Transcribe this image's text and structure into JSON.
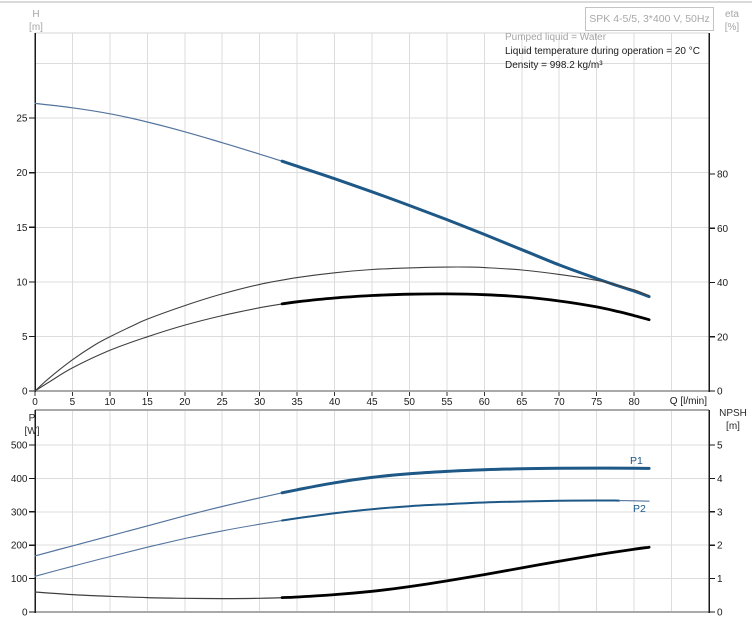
{
  "header": {
    "title_box": "SPK 4-5/5, 3*400 V, 50Hz",
    "info_lines": [
      {
        "text": "Pumped liquid = Water",
        "muted": true
      },
      {
        "text": "Liquid temperature during operation = 20 °C",
        "muted": false
      },
      {
        "text": "Density = 998.2 kg/m³",
        "muted": false
      }
    ]
  },
  "axes_labels": {
    "h_line1": "H",
    "h_line2": "[m]",
    "eta_line1": "eta",
    "eta_line2": "[%]",
    "p_line1": "P",
    "p_line2": "[W]",
    "npsh_line1": "NPSH",
    "npsh_line2": "[m]",
    "q": "Q [l/min]"
  },
  "colors": {
    "curve_blue": "#1d5887",
    "curve_blue_thin": "#54749e",
    "curve_black": "#000000",
    "curve_black_thin": "#3f3f3f",
    "grid": "#dcdcdc",
    "frame_gray": "#a9a9a9",
    "axis_black": "#1a1a1a",
    "muted_text": "#a5a5a5"
  },
  "chart_data": [
    {
      "type": "line",
      "title": "Q/H and efficiency curves",
      "xlabel": "Q [l/min]",
      "ylabel_left": "H [m]",
      "ylabel_right": "eta [%]",
      "grid": true,
      "x_range": [
        0,
        90
      ],
      "x_tick_labels": [
        0,
        5,
        10,
        15,
        20,
        25,
        30,
        35,
        40,
        45,
        50,
        55,
        60,
        65,
        70,
        75,
        80
      ],
      "x_grid": [
        5,
        10,
        15,
        20,
        25,
        30,
        35,
        40,
        45,
        50,
        55,
        60,
        65,
        70,
        75,
        80,
        85
      ],
      "y_left_range": [
        0,
        32.8
      ],
      "y_left_ticks": [
        0,
        5,
        10,
        15,
        20,
        25
      ],
      "y_left_grid": [
        5,
        10,
        15,
        20,
        25,
        30
      ],
      "y_right_range": [
        0,
        132
      ],
      "y_right_ticks": [
        0,
        20,
        40,
        60,
        80
      ],
      "series": [
        {
          "name": "QH",
          "label": "",
          "axis": "left",
          "color": "blue",
          "bold_from": 33,
          "bold_to": null,
          "w_thin": 1.2,
          "w_bold": 3,
          "points": [
            [
              0,
              26.35
            ],
            [
              5,
              25.95
            ],
            [
              10,
              25.4
            ],
            [
              15,
              24.65
            ],
            [
              20,
              23.75
            ],
            [
              25,
              22.75
            ],
            [
              30,
              21.7
            ],
            [
              33,
              21.05
            ],
            [
              35,
              20.6
            ],
            [
              40,
              19.45
            ],
            [
              45,
              18.25
            ],
            [
              50,
              17.0
            ],
            [
              55,
              15.7
            ],
            [
              60,
              14.35
            ],
            [
              65,
              12.95
            ],
            [
              70,
              11.55
            ],
            [
              75,
              10.3
            ],
            [
              78,
              9.6
            ],
            [
              80,
              9.15
            ],
            [
              82,
              8.65
            ]
          ]
        },
        {
          "name": "eta-pump",
          "label": "",
          "axis": "right",
          "color": "black",
          "bold_from": null,
          "bold_to": null,
          "w_thin": 1.1,
          "w_bold": 1.1,
          "points": [
            [
              0,
              0
            ],
            [
              2,
              5
            ],
            [
              5,
              11.5
            ],
            [
              8,
              17
            ],
            [
              10,
              20
            ],
            [
              13,
              24
            ],
            [
              15,
              26.5
            ],
            [
              20,
              31.5
            ],
            [
              25,
              35.8
            ],
            [
              30,
              39.3
            ],
            [
              35,
              41.8
            ],
            [
              40,
              43.6
            ],
            [
              45,
              44.8
            ],
            [
              50,
              45.4
            ],
            [
              55,
              45.7
            ],
            [
              58,
              45.7
            ],
            [
              60,
              45.5
            ],
            [
              65,
              44.6
            ],
            [
              70,
              43.0
            ],
            [
              75,
              40.8
            ],
            [
              78,
              38.8
            ],
            [
              80,
              37.3
            ],
            [
              82,
              35.2
            ]
          ]
        },
        {
          "name": "eta-pump-motor",
          "label": "",
          "axis": "right",
          "color": "black",
          "bold_from": 33,
          "bold_to": null,
          "w_thin": 1.1,
          "w_bold": 2.8,
          "points": [
            [
              0,
              0
            ],
            [
              2,
              3.5
            ],
            [
              5,
              8.5
            ],
            [
              10,
              15
            ],
            [
              15,
              20
            ],
            [
              20,
              24.3
            ],
            [
              25,
              27.8
            ],
            [
              30,
              30.7
            ],
            [
              33,
              32.1
            ],
            [
              35,
              32.9
            ],
            [
              40,
              34.3
            ],
            [
              45,
              35.2
            ],
            [
              50,
              35.7
            ],
            [
              55,
              35.8
            ],
            [
              60,
              35.5
            ],
            [
              65,
              34.7
            ],
            [
              70,
              33.2
            ],
            [
              75,
              31.0
            ],
            [
              78,
              29.2
            ],
            [
              80,
              27.8
            ],
            [
              82,
              26.3
            ]
          ]
        }
      ]
    },
    {
      "type": "line",
      "title": "Power and NPSH curves",
      "xlabel": "Q [l/min]",
      "ylabel_left": "P [W]",
      "ylabel_right": "NPSH [m]",
      "grid": true,
      "x_range": [
        0,
        90
      ],
      "x_tick_labels": [],
      "x_grid": [
        5,
        10,
        15,
        20,
        25,
        30,
        35,
        40,
        45,
        50,
        55,
        60,
        65,
        70,
        75,
        80,
        85
      ],
      "y_left_range": [
        0,
        605
      ],
      "y_left_ticks": [
        0,
        100,
        200,
        300,
        400,
        500
      ],
      "y_left_grid": [
        100,
        200,
        300,
        400,
        500
      ],
      "y_right_range": [
        0,
        6.05
      ],
      "y_right_ticks": [
        0,
        1,
        2,
        3,
        4,
        5
      ],
      "series": [
        {
          "name": "P1",
          "label": "P1",
          "axis": "left",
          "color": "blue",
          "bold_from": 33,
          "bold_to": null,
          "w_thin": 1.2,
          "w_bold": 3,
          "points": [
            [
              0,
              168
            ],
            [
              5,
              198
            ],
            [
              10,
              228
            ],
            [
              15,
              258
            ],
            [
              20,
              288
            ],
            [
              25,
              316
            ],
            [
              30,
              342
            ],
            [
              33,
              357
            ],
            [
              35,
              366
            ],
            [
              40,
              387
            ],
            [
              45,
              403
            ],
            [
              50,
              414
            ],
            [
              55,
              421
            ],
            [
              60,
              426
            ],
            [
              65,
              429
            ],
            [
              70,
              430.5
            ],
            [
              75,
              431
            ],
            [
              80,
              430.5
            ],
            [
              82,
              430
            ]
          ]
        },
        {
          "name": "P2",
          "label": "P2",
          "axis": "left",
          "color": "blue",
          "bold_from": 33,
          "bold_to": 78,
          "w_thin": 1.1,
          "w_bold": 2,
          "points": [
            [
              0,
              107
            ],
            [
              5,
              137
            ],
            [
              10,
              166
            ],
            [
              15,
              194
            ],
            [
              20,
              220
            ],
            [
              25,
              243
            ],
            [
              30,
              263
            ],
            [
              33,
              274
            ],
            [
              35,
              281
            ],
            [
              40,
              296
            ],
            [
              45,
              308
            ],
            [
              50,
              317
            ],
            [
              55,
              323
            ],
            [
              60,
              328
            ],
            [
              65,
              331
            ],
            [
              70,
              333
            ],
            [
              75,
              334
            ],
            [
              78,
              333.6
            ],
            [
              80,
              333
            ],
            [
              82,
              332
            ]
          ]
        },
        {
          "name": "NPSH",
          "label": "",
          "axis": "right",
          "color": "black",
          "bold_from": 33,
          "bold_to": null,
          "w_thin": 1.2,
          "w_bold": 2.8,
          "points": [
            [
              0,
              0.6
            ],
            [
              5,
              0.52
            ],
            [
              10,
              0.47
            ],
            [
              15,
              0.43
            ],
            [
              20,
              0.41
            ],
            [
              25,
              0.4
            ],
            [
              30,
              0.41
            ],
            [
              33,
              0.43
            ],
            [
              35,
              0.45
            ],
            [
              40,
              0.52
            ],
            [
              45,
              0.62
            ],
            [
              50,
              0.76
            ],
            [
              55,
              0.93
            ],
            [
              60,
              1.12
            ],
            [
              65,
              1.32
            ],
            [
              70,
              1.52
            ],
            [
              75,
              1.71
            ],
            [
              80,
              1.88
            ],
            [
              82,
              1.94
            ]
          ]
        }
      ]
    }
  ]
}
